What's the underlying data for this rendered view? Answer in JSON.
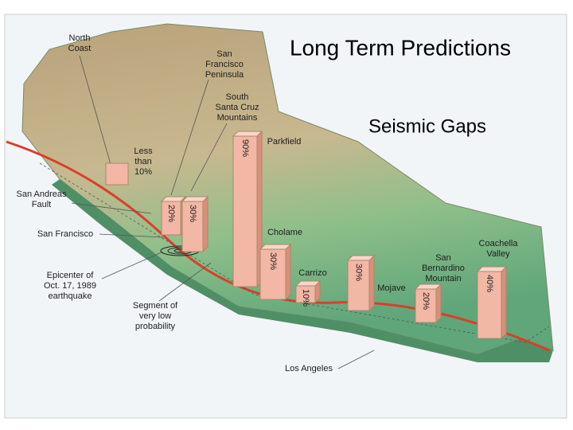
{
  "slide": {
    "title": "Long Term Predictions",
    "subtitle": "Seismic Gaps"
  },
  "map": {
    "place_labels": [
      {
        "lines": [
          "North",
          "Coast"
        ]
      },
      {
        "lines": [
          "San",
          "Francisco",
          "Peninsula"
        ]
      },
      {
        "lines": [
          "South",
          "Santa Cruz",
          "Mountains"
        ]
      },
      {
        "lines": [
          "Parkfield"
        ]
      },
      {
        "lines": [
          "Less",
          "than",
          "10%"
        ]
      },
      {
        "lines": [
          "San Andreas",
          "Fault"
        ]
      },
      {
        "lines": [
          "San Francisco"
        ]
      },
      {
        "lines": [
          "Cholame"
        ]
      },
      {
        "lines": [
          "Carrizo"
        ]
      },
      {
        "lines": [
          "Epicenter of",
          "Oct. 17, 1989",
          "earthquake"
        ]
      },
      {
        "lines": [
          "Segment of",
          "very low",
          "probability"
        ]
      },
      {
        "lines": [
          "Mojave"
        ]
      },
      {
        "lines": [
          "San",
          "Bernardino",
          "Mountain"
        ]
      },
      {
        "lines": [
          "Coachella",
          "Valley"
        ]
      },
      {
        "lines": [
          "Los Angeles"
        ]
      }
    ],
    "segments": {
      "values": [
        20,
        30,
        90,
        30,
        10,
        30,
        20,
        40
      ],
      "value_labels": [
        "20%",
        "30%",
        "90%",
        "30%",
        "10%",
        "30%",
        "20%",
        "40%"
      ]
    }
  }
}
